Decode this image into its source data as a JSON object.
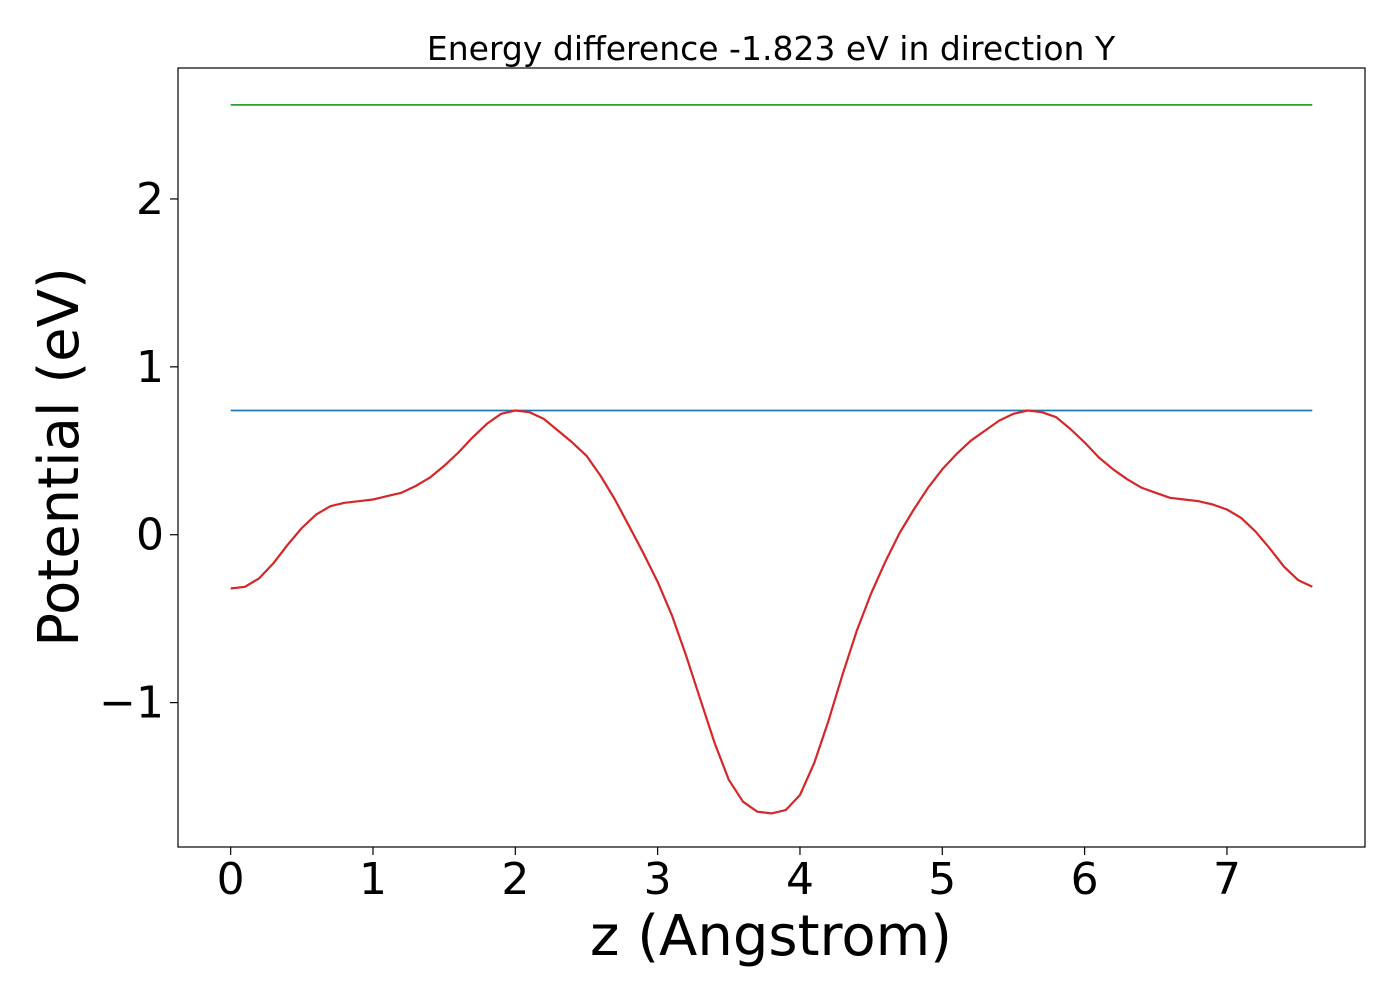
{
  "chart_data": {
    "type": "line",
    "title": "Energy difference -1.823 eV in direction Y",
    "xlabel": "z (Angstrom)",
    "ylabel": "Potential (eV)",
    "xlim": [
      -0.37,
      7.97
    ],
    "ylim": [
      -1.86,
      2.78
    ],
    "xticks": [
      0,
      1,
      2,
      3,
      4,
      5,
      6,
      7
    ],
    "xtick_labels": [
      "0",
      "1",
      "2",
      "3",
      "4",
      "5",
      "6",
      "7"
    ],
    "yticks": [
      -1,
      0,
      1,
      2
    ],
    "ytick_labels": [
      "−1",
      "0",
      "1",
      "2"
    ],
    "grid": false,
    "series": [
      {
        "color": "#2ca02c",
        "x": [
          0,
          7.6
        ],
        "y": [
          2.56,
          2.56
        ]
      },
      {
        "color": "#1f77b4",
        "x": [
          0,
          7.6
        ],
        "y": [
          0.74,
          0.74
        ]
      },
      {
        "color": "#d62728",
        "x": [
          0,
          0.1,
          0.2,
          0.3,
          0.4,
          0.5,
          0.6,
          0.7,
          0.8,
          0.9,
          1.0,
          1.1,
          1.2,
          1.3,
          1.4,
          1.5,
          1.6,
          1.7,
          1.8,
          1.9,
          2.0,
          2.1,
          2.2,
          2.3,
          2.4,
          2.5,
          2.6,
          2.7,
          2.8,
          2.9,
          3.0,
          3.1,
          3.2,
          3.3,
          3.4,
          3.5,
          3.6,
          3.7,
          3.8,
          3.9,
          4.0,
          4.1,
          4.2,
          4.3,
          4.4,
          4.5,
          4.6,
          4.7,
          4.8,
          4.9,
          5.0,
          5.1,
          5.2,
          5.3,
          5.4,
          5.5,
          5.6,
          5.7,
          5.8,
          5.9,
          6.0,
          6.1,
          6.2,
          6.3,
          6.4,
          6.5,
          6.6,
          6.7,
          6.8,
          6.9,
          7.0,
          7.1,
          7.2,
          7.3,
          7.4,
          7.5,
          7.6
        ],
        "y": [
          -0.32,
          -0.31,
          -0.26,
          -0.17,
          -0.06,
          0.04,
          0.12,
          0.17,
          0.19,
          0.2,
          0.21,
          0.23,
          0.25,
          0.29,
          0.34,
          0.41,
          0.49,
          0.58,
          0.66,
          0.72,
          0.74,
          0.73,
          0.69,
          0.62,
          0.55,
          0.47,
          0.35,
          0.21,
          0.05,
          -0.11,
          -0.28,
          -0.48,
          -0.72,
          -0.98,
          -1.24,
          -1.46,
          -1.59,
          -1.65,
          -1.66,
          -1.64,
          -1.55,
          -1.36,
          -1.11,
          -0.83,
          -0.57,
          -0.35,
          -0.16,
          0.01,
          0.15,
          0.28,
          0.39,
          0.48,
          0.56,
          0.62,
          0.68,
          0.72,
          0.74,
          0.73,
          0.7,
          0.63,
          0.55,
          0.46,
          0.39,
          0.33,
          0.28,
          0.25,
          0.22,
          0.21,
          0.2,
          0.18,
          0.15,
          0.1,
          0.02,
          -0.08,
          -0.19,
          -0.27,
          -0.31
        ]
      }
    ]
  }
}
